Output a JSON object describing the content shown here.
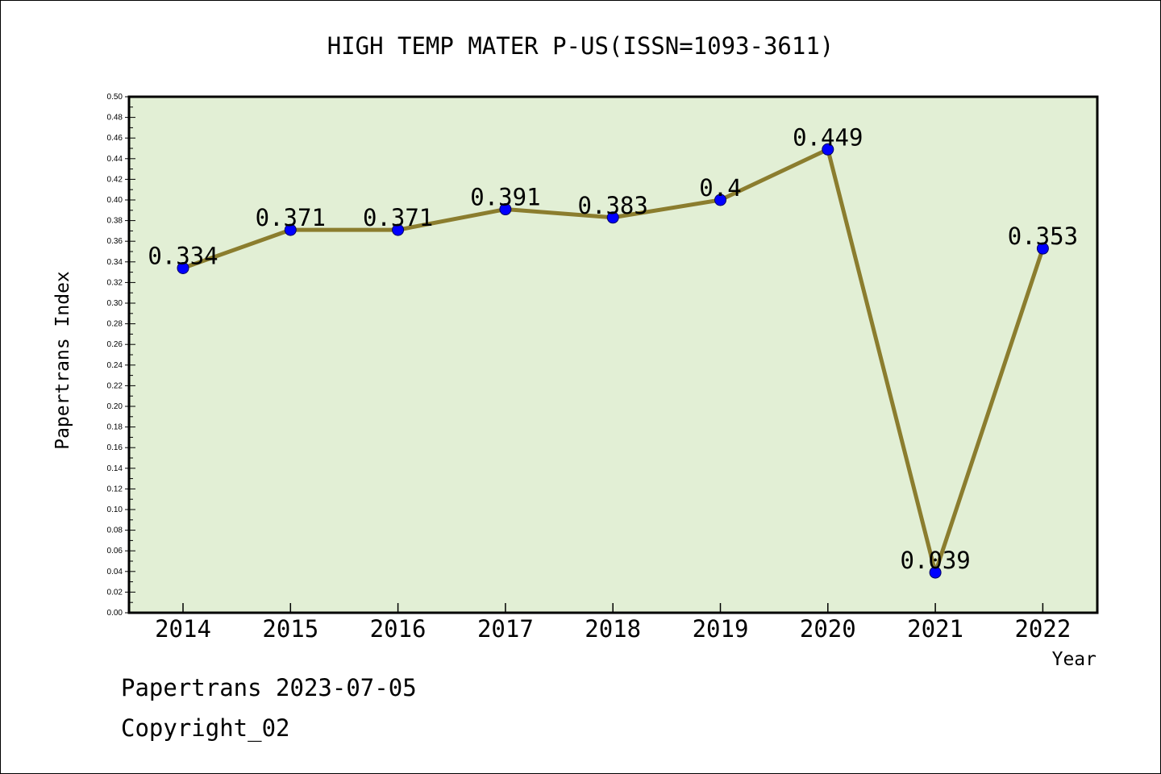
{
  "chart_data": {
    "type": "line",
    "title": "HIGH TEMP MATER P-US(ISSN=1093-3611)",
    "xlabel": "Year",
    "ylabel": "Papertrans Index",
    "categories": [
      "2014",
      "2015",
      "2016",
      "2017",
      "2018",
      "2019",
      "2020",
      "2021",
      "2022"
    ],
    "values": [
      0.334,
      0.371,
      0.371,
      0.391,
      0.383,
      0.4,
      0.449,
      0.039,
      0.353
    ],
    "data_labels": [
      "0.334",
      "0.371",
      "0.371",
      "0.391",
      "0.383",
      "0.4",
      "0.449",
      "0.039",
      "0.353"
    ],
    "ylim": [
      0,
      0.5
    ],
    "ytick_step": 0.02,
    "grid": false,
    "colors": {
      "plot_background": "#e2efd5",
      "line": "#8b7d2e",
      "marker": "#0000ff"
    }
  },
  "footer": {
    "date_line": "Papertrans 2023-07-05",
    "copyright": "Copyright_02"
  }
}
